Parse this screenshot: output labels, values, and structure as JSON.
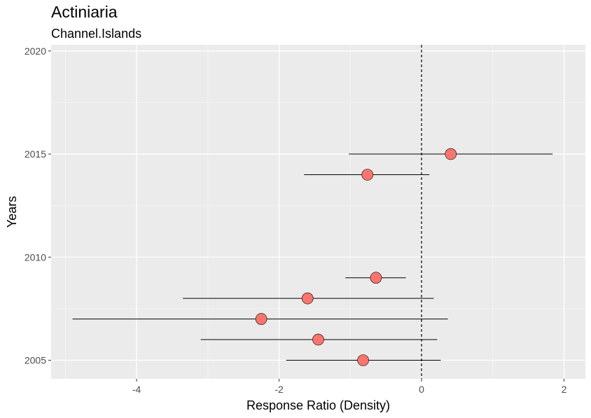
{
  "chart_data": {
    "type": "scatter",
    "title": "Actiniaria",
    "subtitle": "Channel.Islands",
    "xlabel": "Response Ratio (Density)",
    "ylabel": "Years",
    "xlim": [
      -5.2,
      2.3
    ],
    "ylim": [
      2004.1,
      2020.3
    ],
    "x_ticks": [
      -4,
      -2,
      0,
      2
    ],
    "y_ticks": [
      2005,
      2010,
      2015,
      2020
    ],
    "reference_line_x": 0,
    "grid": true,
    "points": [
      {
        "year": 2005,
        "value": -0.82,
        "ci_low": -1.9,
        "ci_high": 0.27
      },
      {
        "year": 2006,
        "value": -1.45,
        "ci_low": -3.1,
        "ci_high": 0.22
      },
      {
        "year": 2007,
        "value": -2.25,
        "ci_low": -4.9,
        "ci_high": 0.37
      },
      {
        "year": 2008,
        "value": -1.6,
        "ci_low": -3.35,
        "ci_high": 0.17
      },
      {
        "year": 2009,
        "value": -0.64,
        "ci_low": -1.07,
        "ci_high": -0.22
      },
      {
        "year": 2014,
        "value": -0.76,
        "ci_low": -1.65,
        "ci_high": 0.11
      },
      {
        "year": 2015,
        "value": 0.41,
        "ci_low": -1.02,
        "ci_high": 1.84
      }
    ],
    "colors": {
      "panel": "#ebebeb",
      "grid_major": "#ffffff",
      "grid_minor": "#f5f5f5",
      "point_fill": "#f8766d",
      "point_stroke": "#000000",
      "errorbar": "#000000"
    }
  }
}
